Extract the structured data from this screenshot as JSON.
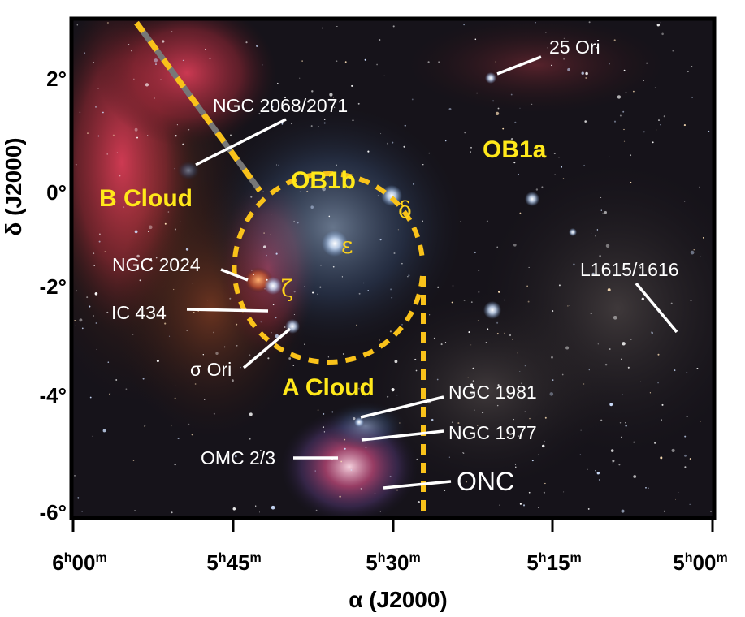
{
  "axes": {
    "xlabel": "α (J2000)",
    "ylabel": "δ (J2000)",
    "x_ticks": [
      {
        "h": "6",
        "m": "00"
      },
      {
        "h": "5",
        "m": "45"
      },
      {
        "h": "5",
        "m": "30"
      },
      {
        "h": "5",
        "m": "15"
      },
      {
        "h": "5",
        "m": "00"
      }
    ],
    "y_ticks": [
      "2°",
      "0°",
      "-2°",
      "-4°",
      "-6°"
    ],
    "h_unit": "h",
    "m_unit": "m"
  },
  "regions": {
    "b_cloud": "B Cloud",
    "a_cloud": "A Cloud",
    "ob1a": "OB1a",
    "ob1b": "OB1b"
  },
  "objects": {
    "ori25": "25 Ori",
    "ngc2068": "NGC 2068/2071",
    "ngc2024": "NGC 2024",
    "ic434": "IC 434",
    "sigma_ori": "σ Ori",
    "l1615": "L1615/1616",
    "ngc1981": "NGC 1981",
    "ngc1977": "NGC 1977",
    "omc23": "OMC 2/3",
    "onc": "ONC"
  },
  "stars": {
    "delta": "δ",
    "epsilon": "ε",
    "zeta": "ζ"
  },
  "colors": {
    "region_label": "#ffe81a",
    "dashed": "#f9c21a",
    "leader": "#ffffff",
    "frame": "#000000",
    "sky": "#14131a",
    "nebula_red": "#c4344e"
  }
}
